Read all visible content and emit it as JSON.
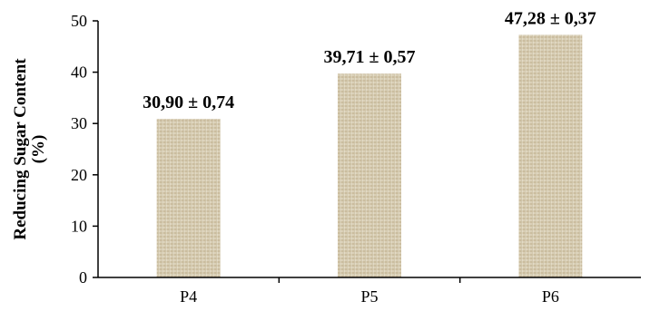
{
  "chart_data": {
    "type": "bar",
    "categories": [
      "P4",
      "P5",
      "P6"
    ],
    "values": [
      30.9,
      39.71,
      47.28
    ],
    "errors": [
      0.74,
      0.57,
      0.37
    ],
    "data_labels": [
      "30,90 ± 0,74",
      "39,71 ± 0,57",
      "47,28 ± 0,37"
    ],
    "title": "",
    "xlabel": "",
    "ylabel": "Reducing Sugar Content",
    "ylabel_line2": "(%)",
    "ylim": [
      0,
      50
    ],
    "yticks": [
      0,
      10,
      20,
      30,
      40,
      50
    ],
    "grid": false,
    "legend": "none",
    "bar_fill": "#d9cfb6",
    "bar_texture": "#bfb194"
  }
}
